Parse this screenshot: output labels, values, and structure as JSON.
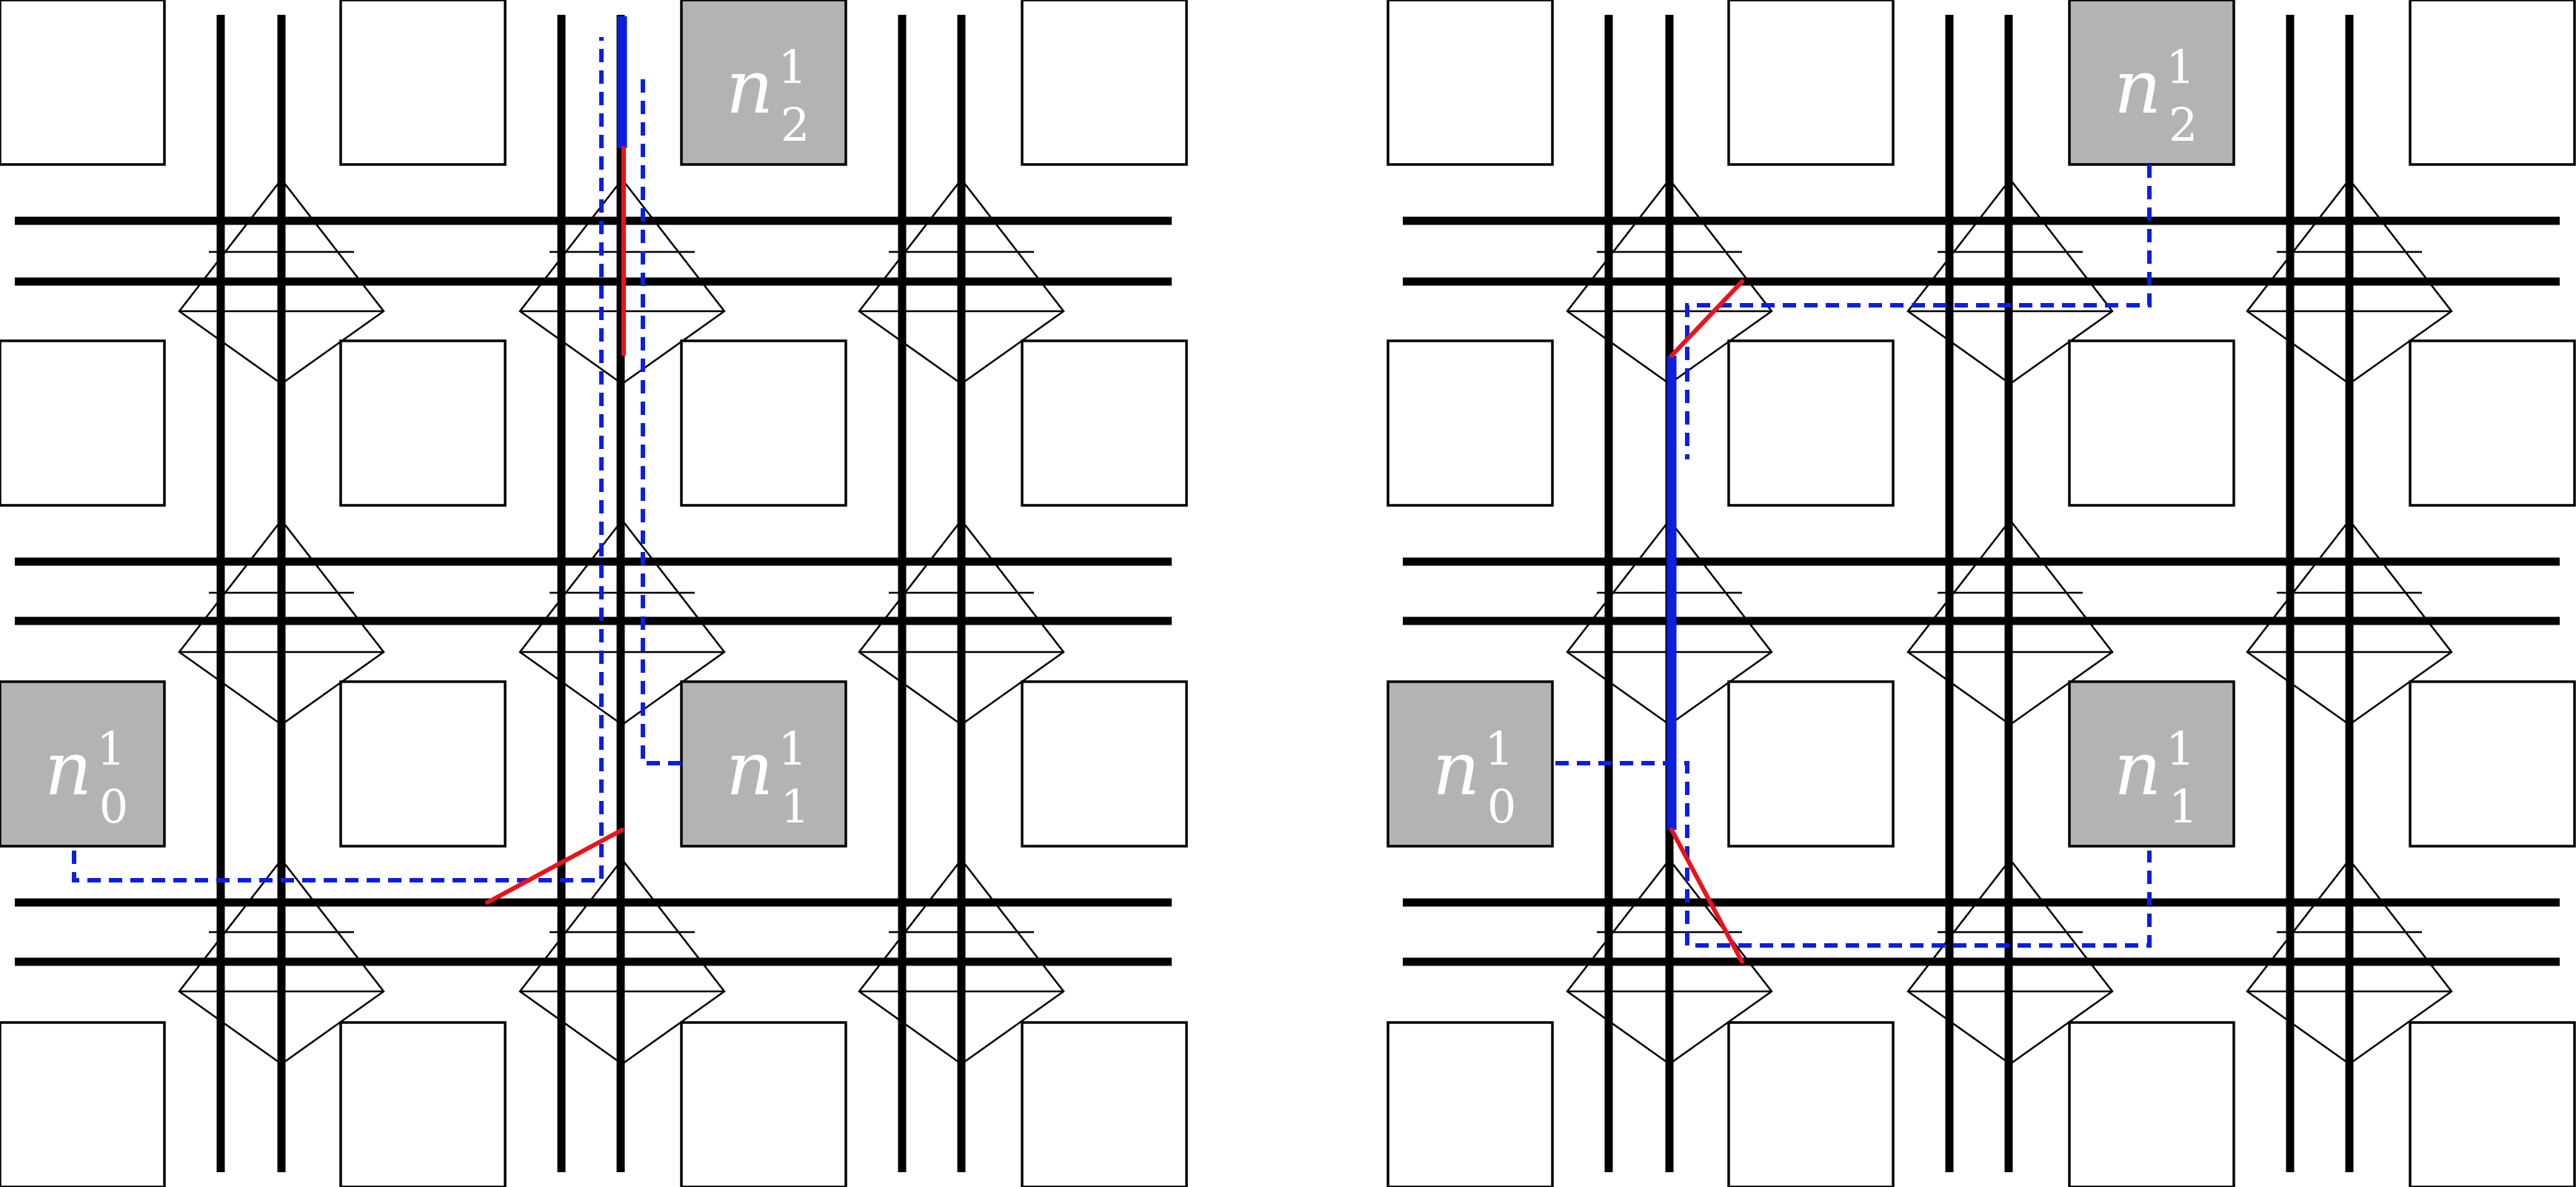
{
  "panels": [
    {
      "name": "left",
      "terminals": [
        {
          "id": "n0",
          "label": "n",
          "sup": "1",
          "sub": "0"
        },
        {
          "id": "n1",
          "label": "n",
          "sup": "1",
          "sub": "1"
        },
        {
          "id": "n2",
          "label": "n",
          "sup": "1",
          "sub": "2"
        }
      ]
    },
    {
      "name": "right",
      "terminals": [
        {
          "id": "n0",
          "label": "n",
          "sup": "1",
          "sub": "0"
        },
        {
          "id": "n1",
          "label": "n",
          "sup": "1",
          "sub": "1"
        },
        {
          "id": "n2",
          "label": "n",
          "sup": "1",
          "sub": "2"
        }
      ]
    }
  ],
  "colors": {
    "track": "#000000",
    "terminal_fill": "#b3b3b3",
    "route": "#0a1fe0",
    "switch_highlight": "#e8141c"
  }
}
